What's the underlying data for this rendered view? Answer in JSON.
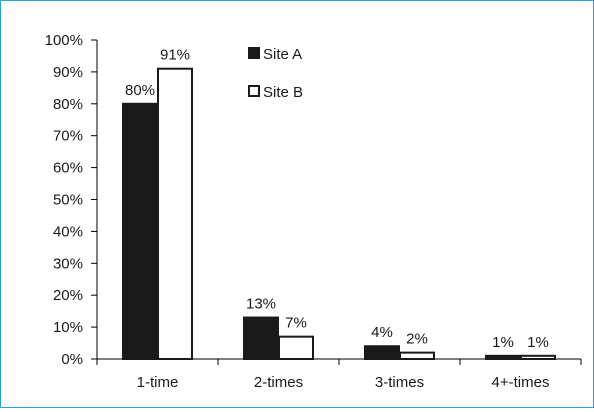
{
  "chart_data": {
    "type": "bar",
    "title": "",
    "xlabel": "",
    "ylabel": "",
    "categories": [
      "1-time",
      "2-times",
      "3-times",
      "4+-times"
    ],
    "series": [
      {
        "name": "Site A",
        "values": [
          80,
          13,
          4,
          1
        ],
        "labels": [
          "80%",
          "13%",
          "4%",
          "1%"
        ],
        "fill": "#1a1a1a",
        "stroke": "#1a1a1a"
      },
      {
        "name": "Site B",
        "values": [
          91,
          7,
          2,
          1
        ],
        "labels": [
          "91%",
          "7%",
          "2%",
          "1%"
        ],
        "fill": "#ffffff",
        "stroke": "#1a1a1a"
      }
    ],
    "ylim": [
      0,
      100
    ],
    "yticks": [
      0,
      10,
      20,
      30,
      40,
      50,
      60,
      70,
      80,
      90,
      100
    ],
    "ytick_labels": [
      "0%",
      "10%",
      "20%",
      "30%",
      "40%",
      "50%",
      "60%",
      "70%",
      "80%",
      "90%",
      "100%"
    ],
    "grid": false,
    "legend_position": "top-center"
  },
  "colors": {
    "frame_border": "#2aa3d6"
  }
}
